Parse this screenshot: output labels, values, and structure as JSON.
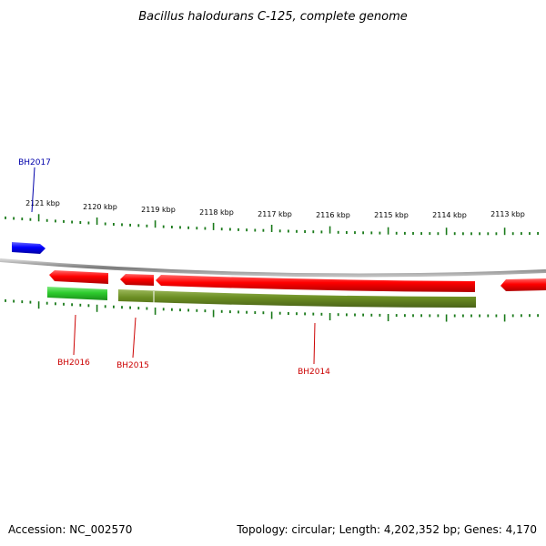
{
  "title": "Bacillus halodurans C-125, complete genome",
  "footer": {
    "accession": "Accession: NC_002570",
    "summary": "Topology: circular; Length: 4,202,352 bp; Genes: 4,170"
  },
  "colors": {
    "backbone": "#8a8a8a",
    "ticks": "#1a7a1a",
    "forward_gene": "#ff0000",
    "reverse_gene_light": "#33cc33",
    "reverse_gene_olive": "#6b8e23",
    "other_gene": "#0000ff",
    "label_red": "#cc0000",
    "label_blue": "#0000aa"
  },
  "scale": {
    "unit": "kbp",
    "labels": [
      "2121 kbp",
      "2120 kbp",
      "2119 kbp",
      "2118 kbp",
      "2117 kbp",
      "2116 kbp",
      "2115 kbp",
      "2114 kbp",
      "2113 kbp"
    ]
  },
  "genes": [
    {
      "name": "BH2017",
      "strand": "forward",
      "color": "#0000ff",
      "label_color": "#0000aa"
    },
    {
      "name": "BH2016",
      "strand": "reverse",
      "color": "#ff0000",
      "label_color": "#cc0000"
    },
    {
      "name": "BH2015",
      "strand": "reverse",
      "color": "#ff0000",
      "label_color": "#cc0000"
    },
    {
      "name": "BH2014",
      "strand": "reverse",
      "color": "#ff0000",
      "label_color": "#cc0000"
    }
  ]
}
